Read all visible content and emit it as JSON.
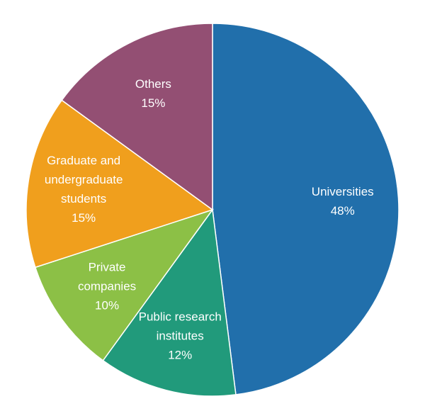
{
  "chart_data": {
    "type": "pie",
    "categories": [
      "Universities",
      "Public research institutes",
      "Private companies",
      "Graduate and undergraduate students",
      "Others"
    ],
    "values": [
      48,
      12,
      10,
      15,
      15
    ],
    "value_labels": [
      "48%",
      "12%",
      "10%",
      "15%",
      "15%"
    ],
    "colors": [
      "#216fab",
      "#219a7b",
      "#8cc046",
      "#f09f1d",
      "#934f73"
    ]
  }
}
